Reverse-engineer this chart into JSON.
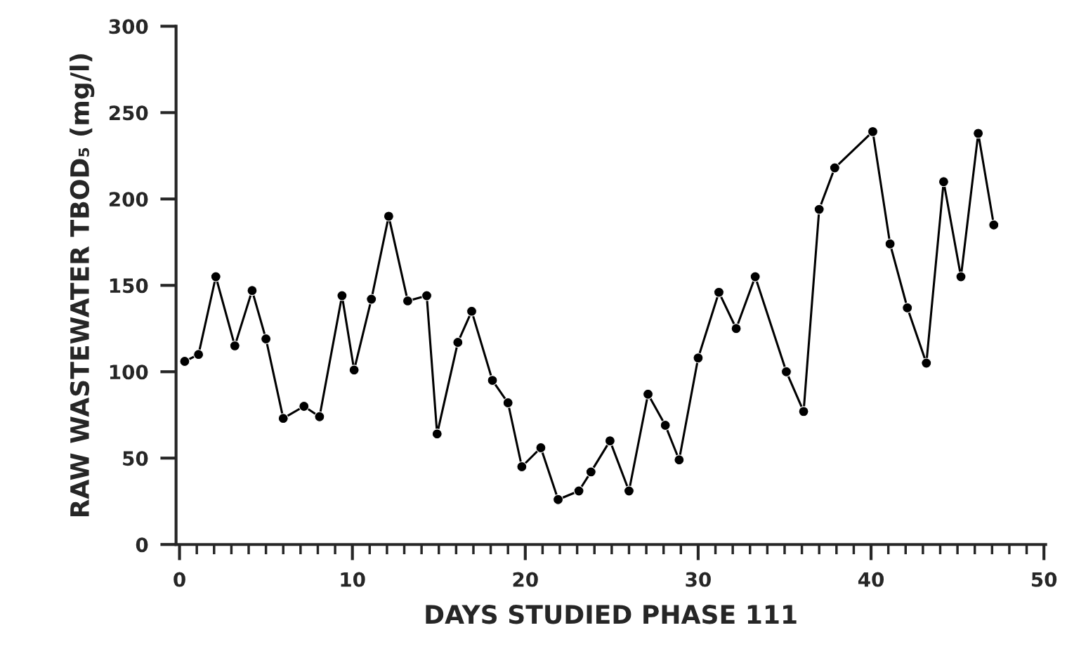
{
  "chart_data": {
    "type": "line",
    "xlabel": "DAYS STUDIED PHASE 111",
    "ylabel": "RAW WASTEWATER TBOD₅ (mg/l)",
    "x": [
      0.3,
      1.1,
      2.1,
      3.2,
      4.2,
      5.0,
      6.0,
      7.2,
      8.1,
      9.4,
      10.1,
      11.1,
      12.1,
      13.2,
      14.3,
      14.9,
      16.1,
      16.9,
      18.1,
      19.0,
      19.8,
      20.9,
      21.9,
      23.1,
      23.8,
      24.9,
      26.0,
      27.1,
      28.1,
      28.9,
      30.0,
      31.2,
      32.2,
      33.3,
      35.1,
      36.1,
      37.0,
      37.9,
      40.1,
      41.1,
      42.1,
      43.2,
      44.2,
      45.2,
      46.2,
      47.1
    ],
    "series": [
      {
        "color": "#000000",
        "values": [
          106,
          110,
          155,
          115,
          147,
          119,
          73,
          80,
          74,
          144,
          101,
          142,
          190,
          141,
          144,
          64,
          117,
          135,
          95,
          82,
          45,
          56,
          26,
          31,
          42,
          60,
          31,
          87,
          69,
          49,
          108,
          146,
          125,
          155,
          100,
          77,
          194,
          218,
          239,
          174,
          137,
          105,
          210,
          155,
          238,
          185
        ]
      }
    ],
    "xlim": [
      -0.2,
      50.1
    ],
    "ylim": [
      0,
      300
    ],
    "xticks": [
      0,
      10,
      20,
      30,
      40,
      50
    ],
    "yticks": [
      0,
      50,
      100,
      150,
      200,
      250,
      300
    ],
    "grid": false,
    "marker": "circle",
    "line_style": "solid"
  }
}
